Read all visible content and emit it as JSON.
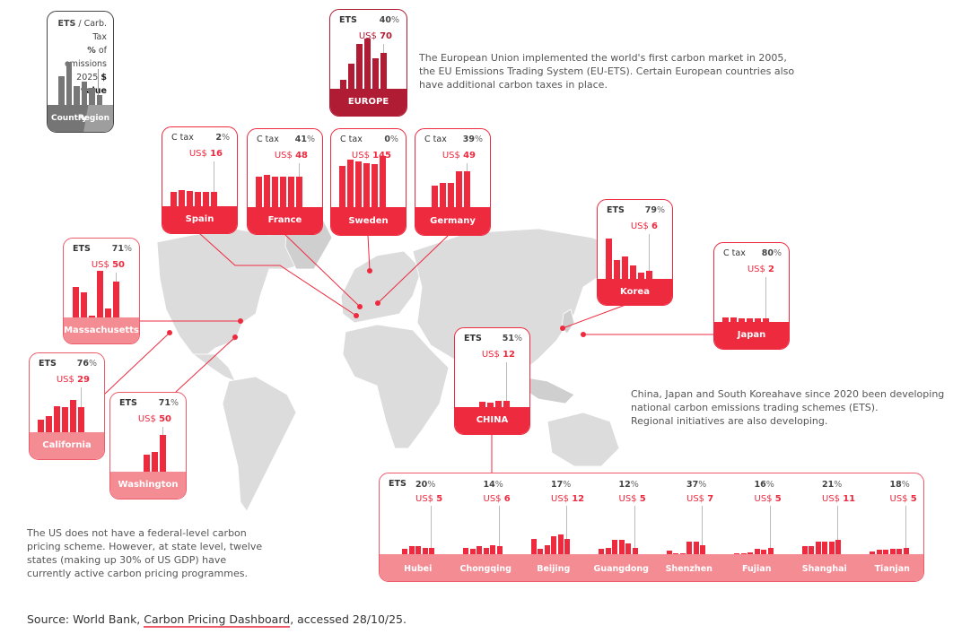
{
  "legend": {
    "type_bold": "ETS",
    "type_rest": " / Carb. Tax",
    "pct_bold": "%",
    "pct_rest": " of emissions",
    "year": "2025 ",
    "value_bold": "$ value",
    "country": "Country",
    "region": "Region",
    "bars": [
      6,
      9,
      4,
      5,
      3.5,
      2
    ]
  },
  "europe": {
    "id": "europe",
    "type": "ETS",
    "pct": "40",
    "currency": "US$ ",
    "price": "70",
    "name": "EUROPE",
    "values": [
      17,
      49,
      88,
      98,
      60,
      70
    ]
  },
  "countries": [
    {
      "id": "spain",
      "type": "C tax",
      "pct": "2",
      "currency": "US$ ",
      "price": "16",
      "name": "Spain",
      "values": [
        16,
        18,
        17,
        16,
        16,
        16
      ]
    },
    {
      "id": "france",
      "type": "C tax",
      "pct": "41",
      "currency": "US$ ",
      "price": "48",
      "name": "France",
      "values": [
        49,
        52,
        49,
        48,
        48,
        48
      ]
    },
    {
      "id": "sweden",
      "type": "C tax",
      "pct": "0",
      "currency": "US$ ",
      "price": "145",
      "name": "Sweden",
      "values": [
        119,
        135,
        130,
        125,
        122,
        145
      ]
    },
    {
      "id": "germany",
      "type": "C tax",
      "pct": "39",
      "currency": "US$ ",
      "price": "49",
      "name": "Germany",
      "values": [
        29,
        33,
        33,
        49,
        49
      ]
    },
    {
      "id": "massachusetts",
      "type": "ETS",
      "pct": "71",
      "currency": "US$ ",
      "price": "50",
      "name": "Massachusetts",
      "values": [
        43,
        35,
        3,
        65,
        13,
        50
      ]
    },
    {
      "id": "california",
      "type": "ETS",
      "pct": "76",
      "currency": "US$ ",
      "price": "29",
      "name": "California",
      "values": [
        15,
        19,
        31,
        30,
        38,
        29
      ]
    },
    {
      "id": "washington",
      "type": "ETS",
      "pct": "71",
      "currency": "US$ ",
      "price": "50",
      "name": "Washington",
      "values": [
        23,
        26,
        50
      ]
    },
    {
      "id": "korea",
      "type": "ETS",
      "pct": "79",
      "currency": "US$ ",
      "price": "6",
      "name": "Korea",
      "values": [
        30,
        14,
        17,
        10,
        5,
        6
      ]
    },
    {
      "id": "japan",
      "type": "C tax",
      "pct": "80",
      "currency": "US$ ",
      "price": "2",
      "name": "Japan",
      "values": [
        2.4,
        2.4,
        2.1,
        2.1,
        1.9,
        2
      ]
    },
    {
      "id": "china",
      "type": "ETS",
      "pct": "51",
      "currency": "US$ ",
      "price": "12",
      "name": "CHINA",
      "values": [
        10,
        9,
        12.5,
        12
      ]
    }
  ],
  "pilots": {
    "type": "ETS",
    "items": [
      {
        "name": "Hubei",
        "pct": "20",
        "currency": "US$ ",
        "price": "5",
        "values": [
          4,
          6,
          6,
          5,
          5
        ]
      },
      {
        "name": "Chongqing",
        "pct": "14",
        "currency": "US$ ",
        "price": "6",
        "values": [
          5,
          4,
          6,
          5,
          7,
          6
        ]
      },
      {
        "name": "Beijing",
        "pct": "17",
        "currency": "US$ ",
        "price": "12",
        "values": [
          12,
          4,
          7,
          14,
          15,
          12
        ]
      },
      {
        "name": "Guangdong",
        "pct": "12",
        "currency": "US$ ",
        "price": "5",
        "values": [
          4,
          5,
          11,
          11,
          8,
          5
        ]
      },
      {
        "name": "Shenzhen",
        "pct": "37",
        "currency": "US$ ",
        "price": "7",
        "values": [
          2.5,
          1,
          0.3,
          10,
          10,
          7
        ]
      },
      {
        "name": "Fujian",
        "pct": "16",
        "currency": "US$ ",
        "price": "5",
        "values": [
          1,
          1,
          1.6,
          4.3,
          3.6,
          5
        ]
      },
      {
        "name": "Shanghai",
        "pct": "21",
        "currency": "US$ ",
        "price": "11",
        "values": [
          6,
          6,
          9.5,
          9.5,
          10,
          11
        ]
      },
      {
        "name": "Tianjan",
        "pct": "18",
        "currency": "US$ ",
        "price": "5",
        "values": [
          2.3,
          3.6,
          3.6,
          4.3,
          4.3,
          5
        ]
      }
    ]
  },
  "percent_sign": "%",
  "texts": {
    "eu": [
      "The European Union implemented the world's first carbon market in 2005,",
      "the EU Emissions Trading System (EU-ETS). Certain European countries also",
      "have additional carbon taxes in place."
    ],
    "asia": [
      "China, Japan and South Koreahave since 2020 been developing",
      "national carbon emissions trading schemes (ETS).",
      "Regional initiatives are also developing."
    ],
    "us": [
      "The US does not have a federal-level carbon",
      "pricing scheme. However, at state level, twelve",
      "states (making up 30% of US GDP) have",
      "currently active carbon pricing programmes."
    ]
  },
  "source": {
    "prefix": "Source: World Bank, ",
    "link": "Carbon Pricing Dashboard",
    "suffix": ", accessed 28/10/25."
  },
  "colors": {
    "accent": "#ee2a3f",
    "europe": "#b01c33",
    "light": "#f48c94",
    "map": "#dcdcdc"
  }
}
